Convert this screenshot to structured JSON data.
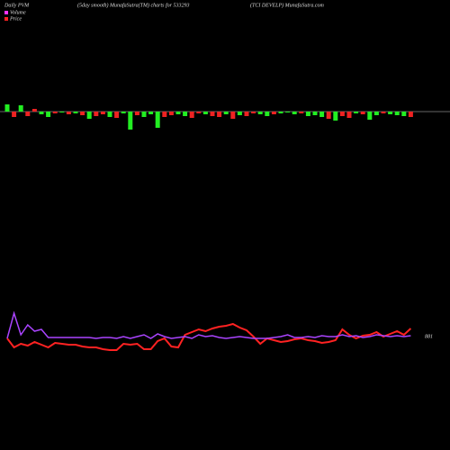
{
  "chart_data": [
    {
      "type": "bar",
      "title": "Daily PVM",
      "subtitle": "(5day smooth) MunafaSutra(TM) charts for 533293",
      "caption": "(TCI DEVELP) MunafaSutra.com",
      "series": [
        {
          "name": "Volume",
          "color": "#ff33ff",
          "values": [
            8,
            -6,
            7,
            -5,
            3,
            -3,
            -6,
            -2,
            -1,
            -3,
            -2,
            -4,
            -8,
            -5,
            -3,
            -6,
            -7,
            -2,
            -20,
            -4,
            -6,
            -3,
            -18,
            -6,
            -4,
            -3,
            -5,
            -7,
            -2,
            -3,
            -5,
            -6,
            -3,
            -8,
            -4,
            -5,
            -2,
            -3,
            -5,
            -3,
            -2,
            -1,
            -3,
            -2,
            -5,
            -4,
            -6,
            -8,
            -10,
            -5,
            -7,
            -2,
            -3,
            -9,
            -4,
            -2,
            -3,
            -4,
            -5,
            -6
          ],
          "colors": [
            "#22ee22",
            "#ee2222",
            "#22ee22",
            "#ee2222",
            "#ee2222",
            "#22ee22",
            "#22ee22",
            "#ee2222",
            "#22ee22",
            "#ee2222",
            "#22ee22",
            "#ee2222",
            "#22ee22",
            "#ee2222",
            "#ee2222",
            "#22ee22",
            "#ee2222",
            "#22ee22",
            "#22ee22",
            "#ee2222",
            "#22ee22",
            "#22ee22",
            "#22ee22",
            "#ee2222",
            "#ee2222",
            "#22ee22",
            "#22ee22",
            "#ee2222",
            "#ee2222",
            "#22ee22",
            "#ee2222",
            "#ee2222",
            "#22ee22",
            "#ee2222",
            "#22ee22",
            "#ee2222",
            "#ee2222",
            "#22ee22",
            "#22ee22",
            "#ee2222",
            "#22ee22",
            "#22ee22",
            "#22ee22",
            "#ee2222",
            "#22ee22",
            "#22ee22",
            "#22ee22",
            "#ee2222",
            "#22ee22",
            "#ee2222",
            "#ee2222",
            "#22ee22",
            "#ee2222",
            "#22ee22",
            "#22ee22",
            "#ee2222",
            "#22ee22",
            "#22ee22",
            "#22ee22",
            "#ee2222"
          ]
        }
      ],
      "ylim": [
        -100,
        100
      ]
    },
    {
      "type": "line",
      "annotation": "881",
      "series": [
        {
          "name": "Price",
          "color": "#ff2222",
          "values": [
            24,
            14,
            18,
            16,
            20,
            17,
            14,
            19,
            18,
            17,
            17,
            15,
            14,
            14,
            12,
            11,
            11,
            18,
            17,
            18,
            12,
            12,
            21,
            24,
            15,
            14,
            28,
            31,
            34,
            32,
            35,
            37,
            38,
            40,
            36,
            33,
            26,
            18,
            24,
            22,
            20,
            21,
            23,
            24,
            22,
            21,
            19,
            20,
            22,
            34,
            28,
            24,
            27,
            28,
            31,
            26,
            29,
            32,
            28,
            35
          ]
        },
        {
          "color": "#aa44ff",
          "values": [
            24,
            52,
            28,
            39,
            32,
            34,
            25,
            25,
            25,
            25,
            25,
            25,
            25,
            24,
            25,
            25,
            24,
            26,
            24,
            26,
            28,
            24,
            29,
            26,
            24,
            25,
            26,
            24,
            28,
            26,
            27,
            25,
            24,
            25,
            26,
            25,
            24,
            24,
            24,
            25,
            26,
            28,
            25,
            25,
            26,
            25,
            27,
            26,
            26,
            28,
            26,
            27,
            25,
            26,
            28,
            27,
            26,
            27,
            26,
            27
          ]
        }
      ],
      "ylim": [
        0,
        100
      ]
    }
  ]
}
